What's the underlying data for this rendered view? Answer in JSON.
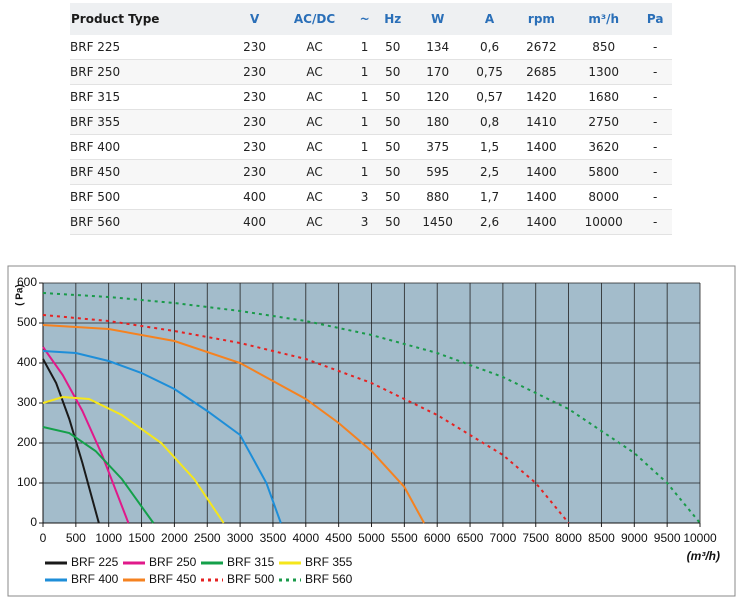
{
  "table": {
    "headers": [
      "Product Type",
      "V",
      "AC/DC",
      "~",
      "Hz",
      "W",
      "A",
      "rpm",
      "m³/h",
      "Pa"
    ],
    "rows": [
      [
        "BRF 225",
        "230",
        "AC",
        "1",
        "50",
        "134",
        "0,6",
        "2672",
        "850",
        "-"
      ],
      [
        "BRF 250",
        "230",
        "AC",
        "1",
        "50",
        "170",
        "0,75",
        "2685",
        "1300",
        "-"
      ],
      [
        "BRF 315",
        "230",
        "AC",
        "1",
        "50",
        "120",
        "0,57",
        "1420",
        "1680",
        "-"
      ],
      [
        "BRF 355",
        "230",
        "AC",
        "1",
        "50",
        "180",
        "0,8",
        "1410",
        "2750",
        "-"
      ],
      [
        "BRF 400",
        "230",
        "AC",
        "1",
        "50",
        "375",
        "1,5",
        "1400",
        "3620",
        "-"
      ],
      [
        "BRF 450",
        "230",
        "AC",
        "1",
        "50",
        "595",
        "2,5",
        "1400",
        "5800",
        "-"
      ],
      [
        "BRF 500",
        "400",
        "AC",
        "3",
        "50",
        "880",
        "1,7",
        "1400",
        "8000",
        "-"
      ],
      [
        "BRF 560",
        "400",
        "AC",
        "3",
        "50",
        "1450",
        "2,6",
        "1400",
        "10000",
        "-"
      ]
    ]
  },
  "chart_data": {
    "type": "line",
    "ylabel": "( Pa)",
    "xlabel": "(m³/h)",
    "xlim": [
      0,
      10000
    ],
    "ylim": [
      0,
      600
    ],
    "xticks": [
      0,
      500,
      1000,
      1500,
      2000,
      2500,
      3000,
      3500,
      4000,
      4500,
      5000,
      5500,
      6000,
      6500,
      7000,
      7500,
      8000,
      8500,
      9000,
      9500,
      10000
    ],
    "yticks": [
      0,
      100,
      200,
      300,
      400,
      500,
      600
    ],
    "grid": true,
    "series": [
      {
        "name": "BRF 225",
        "color": "#1a1a1a",
        "dashed": false,
        "x": [
          0,
          200,
          400,
          600,
          850
        ],
        "values": [
          410,
          350,
          260,
          150,
          0
        ]
      },
      {
        "name": "BRF 250",
        "color": "#e0198a",
        "dashed": false,
        "x": [
          0,
          300,
          600,
          900,
          1300
        ],
        "values": [
          440,
          370,
          280,
          170,
          0
        ]
      },
      {
        "name": "BRF 315",
        "color": "#14a04a",
        "dashed": false,
        "x": [
          0,
          400,
          800,
          1200,
          1680
        ],
        "values": [
          240,
          225,
          180,
          110,
          0
        ]
      },
      {
        "name": "BRF 355",
        "color": "#f5e61b",
        "dashed": false,
        "x": [
          0,
          300,
          700,
          1200,
          1800,
          2300,
          2750
        ],
        "values": [
          300,
          315,
          310,
          270,
          200,
          110,
          0
        ]
      },
      {
        "name": "BRF 400",
        "color": "#1e8ed8",
        "dashed": false,
        "x": [
          0,
          500,
          1000,
          1500,
          2000,
          2500,
          3000,
          3400,
          3620
        ],
        "values": [
          430,
          425,
          405,
          375,
          335,
          280,
          220,
          100,
          0
        ]
      },
      {
        "name": "BRF 450",
        "color": "#f58220",
        "dashed": false,
        "x": [
          0,
          1000,
          2000,
          3000,
          4000,
          4500,
          5000,
          5500,
          5800
        ],
        "values": [
          495,
          485,
          455,
          400,
          310,
          250,
          180,
          90,
          0
        ]
      },
      {
        "name": "BRF 500",
        "color": "#e52222",
        "dashed": true,
        "x": [
          0,
          1000,
          2000,
          3000,
          4000,
          5000,
          6000,
          7000,
          7500,
          8000
        ],
        "values": [
          520,
          505,
          480,
          450,
          410,
          350,
          270,
          170,
          100,
          0
        ]
      },
      {
        "name": "BRF 560",
        "color": "#1a9a4a",
        "dashed": true,
        "x": [
          0,
          1000,
          2000,
          3000,
          4000,
          5000,
          6000,
          7000,
          8000,
          9000,
          9500,
          10000
        ],
        "values": [
          575,
          565,
          550,
          530,
          505,
          470,
          425,
          365,
          285,
          175,
          100,
          0
        ]
      }
    ]
  }
}
